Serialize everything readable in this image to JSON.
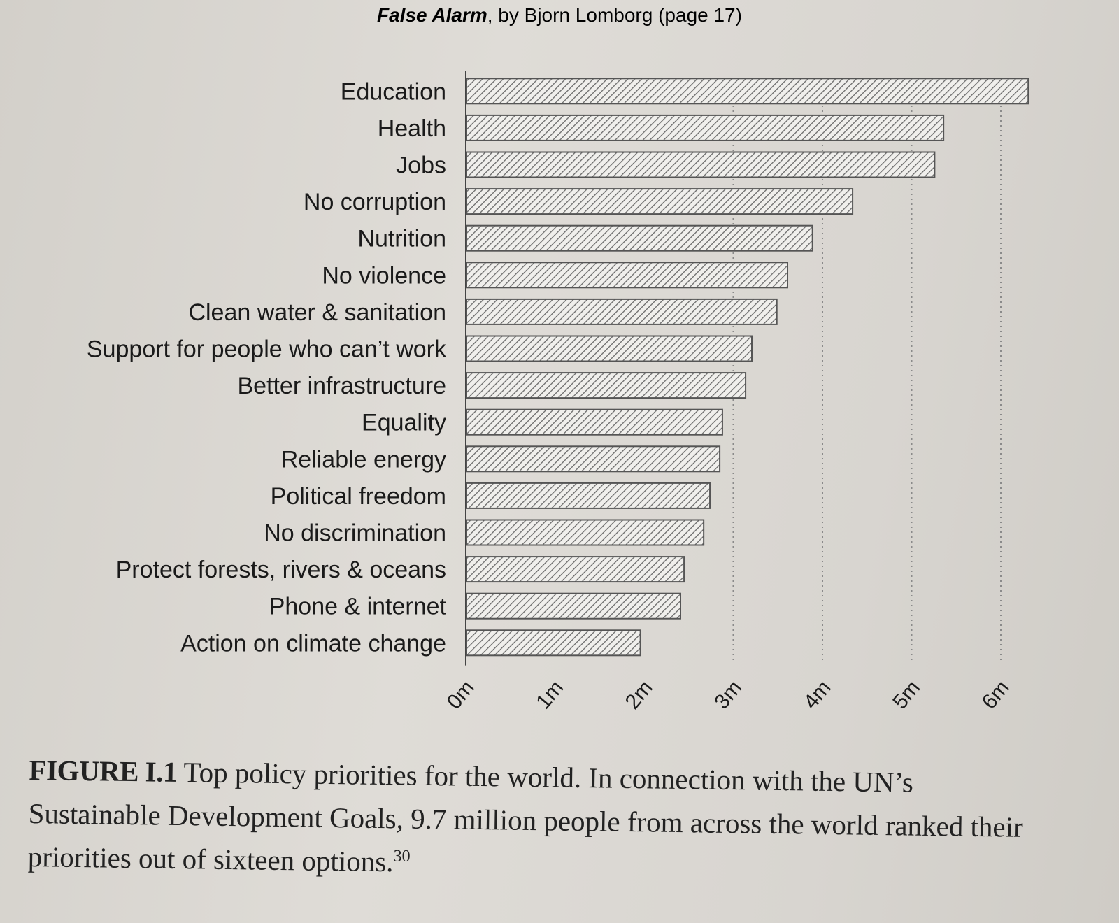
{
  "header": {
    "book_title": "False Alarm",
    "rest": ", by Bjorn Lomborg (page 17)"
  },
  "chart_data": {
    "type": "bar",
    "orientation": "horizontal",
    "categories": [
      "Education",
      "Health",
      "Jobs",
      "No corruption",
      "Nutrition",
      "No violence",
      "Clean water & sanitation",
      "Support for people who can’t work",
      "Better infrastructure",
      "Equality",
      "Reliable energy",
      "Political freedom",
      "No discrimination",
      "Protect forests, rivers & oceans",
      "Phone & internet",
      "Action on climate change"
    ],
    "values": [
      6.3,
      5.35,
      5.25,
      4.33,
      3.88,
      3.6,
      3.48,
      3.2,
      3.13,
      2.87,
      2.84,
      2.73,
      2.66,
      2.44,
      2.4,
      1.95
    ],
    "xticks": [
      "0m",
      "1m",
      "2m",
      "3m",
      "4m",
      "5m",
      "6m"
    ],
    "xlim": [
      0,
      6.4
    ],
    "grid": "vertical dotted lines at 3m, 4m, 5m, 6m",
    "bar_fill": "diagonal hatch",
    "colors": {
      "bar_stroke": "#555555",
      "hatch": "#6a6a6a",
      "bar_bg": "#f0efec",
      "grid": "#8a8a8a",
      "text": "#1a1a1a"
    }
  },
  "caption": {
    "label": "FIGURE I.1",
    "text": " Top policy priorities for the world. In connection with the UN’s Sustainable Development Goals, 9.7 million people from across the world ranked their priorities out of sixteen options.",
    "footnote": "30"
  }
}
